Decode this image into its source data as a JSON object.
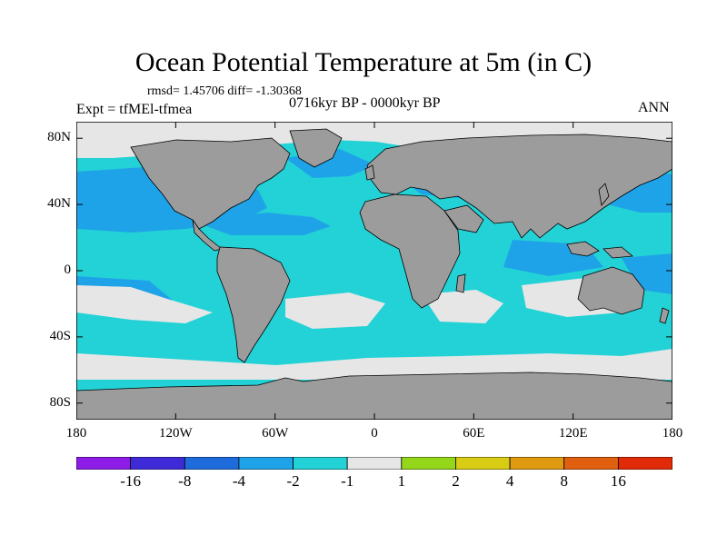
{
  "title": "Ocean Potential Temperature at 5m (in C)",
  "stats": "rmsd= 1.45706 diff= -1.30368",
  "expt": "Expt = tfMEl-tfmea",
  "period": "0716kyr BP - 0000kyr BP",
  "season": "ANN",
  "map": {
    "lon_range": [
      -180,
      180
    ],
    "lat_range": [
      -90,
      90
    ],
    "land_color": "#9c9c9c",
    "x_ticks": [
      {
        "value": -180,
        "label": "180"
      },
      {
        "value": -120,
        "label": "120W"
      },
      {
        "value": -60,
        "label": "60W"
      },
      {
        "value": 0,
        "label": "0"
      },
      {
        "value": 60,
        "label": "60E"
      },
      {
        "value": 120,
        "label": "120E"
      },
      {
        "value": 180,
        "label": "180"
      }
    ],
    "y_ticks": [
      {
        "value": 80,
        "label": "80N"
      },
      {
        "value": 40,
        "label": "40N"
      },
      {
        "value": 0,
        "label": "0"
      },
      {
        "value": -40,
        "label": "40S"
      },
      {
        "value": -80,
        "label": "80S"
      }
    ]
  },
  "colorbar": {
    "colors": [
      "#8c1ce6",
      "#3f2ad8",
      "#1e6bdc",
      "#1fa3e8",
      "#23d2d6",
      "#e6e6e6",
      "#93d61a",
      "#d8cc14",
      "#e09a10",
      "#e06010",
      "#e02a08"
    ],
    "labels": [
      "-16",
      "-8",
      "-4",
      "-2",
      "-1",
      "1",
      "2",
      "4",
      "8",
      "16"
    ]
  }
}
